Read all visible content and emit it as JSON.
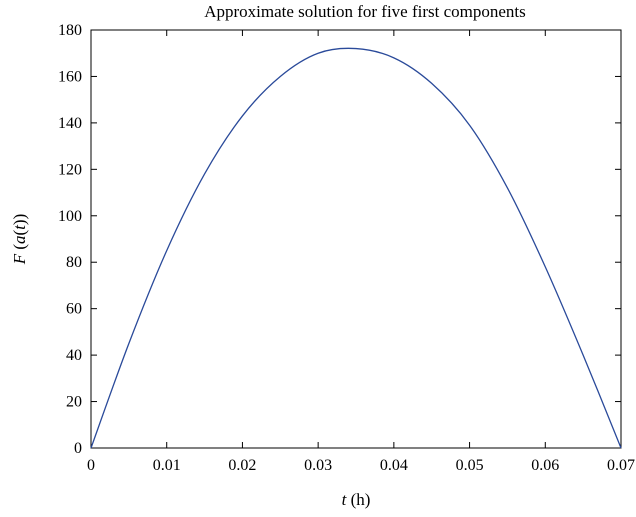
{
  "chart_data": {
    "type": "line",
    "title": "Approximate solution for five first components",
    "xlabel_var": "t",
    "xlabel_unit": " (h)",
    "ylabel_func": "F",
    "ylabel_arg_open": " (",
    "ylabel_inner_func": "a",
    "ylabel_inner_arg_open": "(",
    "ylabel_var": "t",
    "ylabel_close": "))",
    "xlim": [
      0,
      0.07
    ],
    "ylim": [
      0,
      180
    ],
    "xticks": [
      0,
      0.01,
      0.02,
      0.03,
      0.04,
      0.05,
      0.06,
      0.07
    ],
    "xtick_labels": [
      "0",
      "0.01",
      "0.02",
      "0.03",
      "0.04",
      "0.05",
      "0.06",
      "0.07"
    ],
    "yticks": [
      0,
      20,
      40,
      60,
      80,
      100,
      120,
      140,
      160,
      180
    ],
    "ytick_labels": [
      "0",
      "20",
      "40",
      "60",
      "80",
      "100",
      "120",
      "140",
      "160",
      "180"
    ],
    "grid": false,
    "line_color": "#2a4a9a",
    "series": [
      {
        "x": [
          0,
          0.005,
          0.01,
          0.015,
          0.02,
          0.025,
          0.03,
          0.035,
          0.04,
          0.045,
          0.05,
          0.055,
          0.06,
          0.065,
          0.07
        ],
        "y": [
          0,
          45,
          85,
          118,
          143,
          160,
          170,
          172,
          168,
          157,
          139,
          112,
          78,
          40,
          0
        ]
      }
    ]
  }
}
